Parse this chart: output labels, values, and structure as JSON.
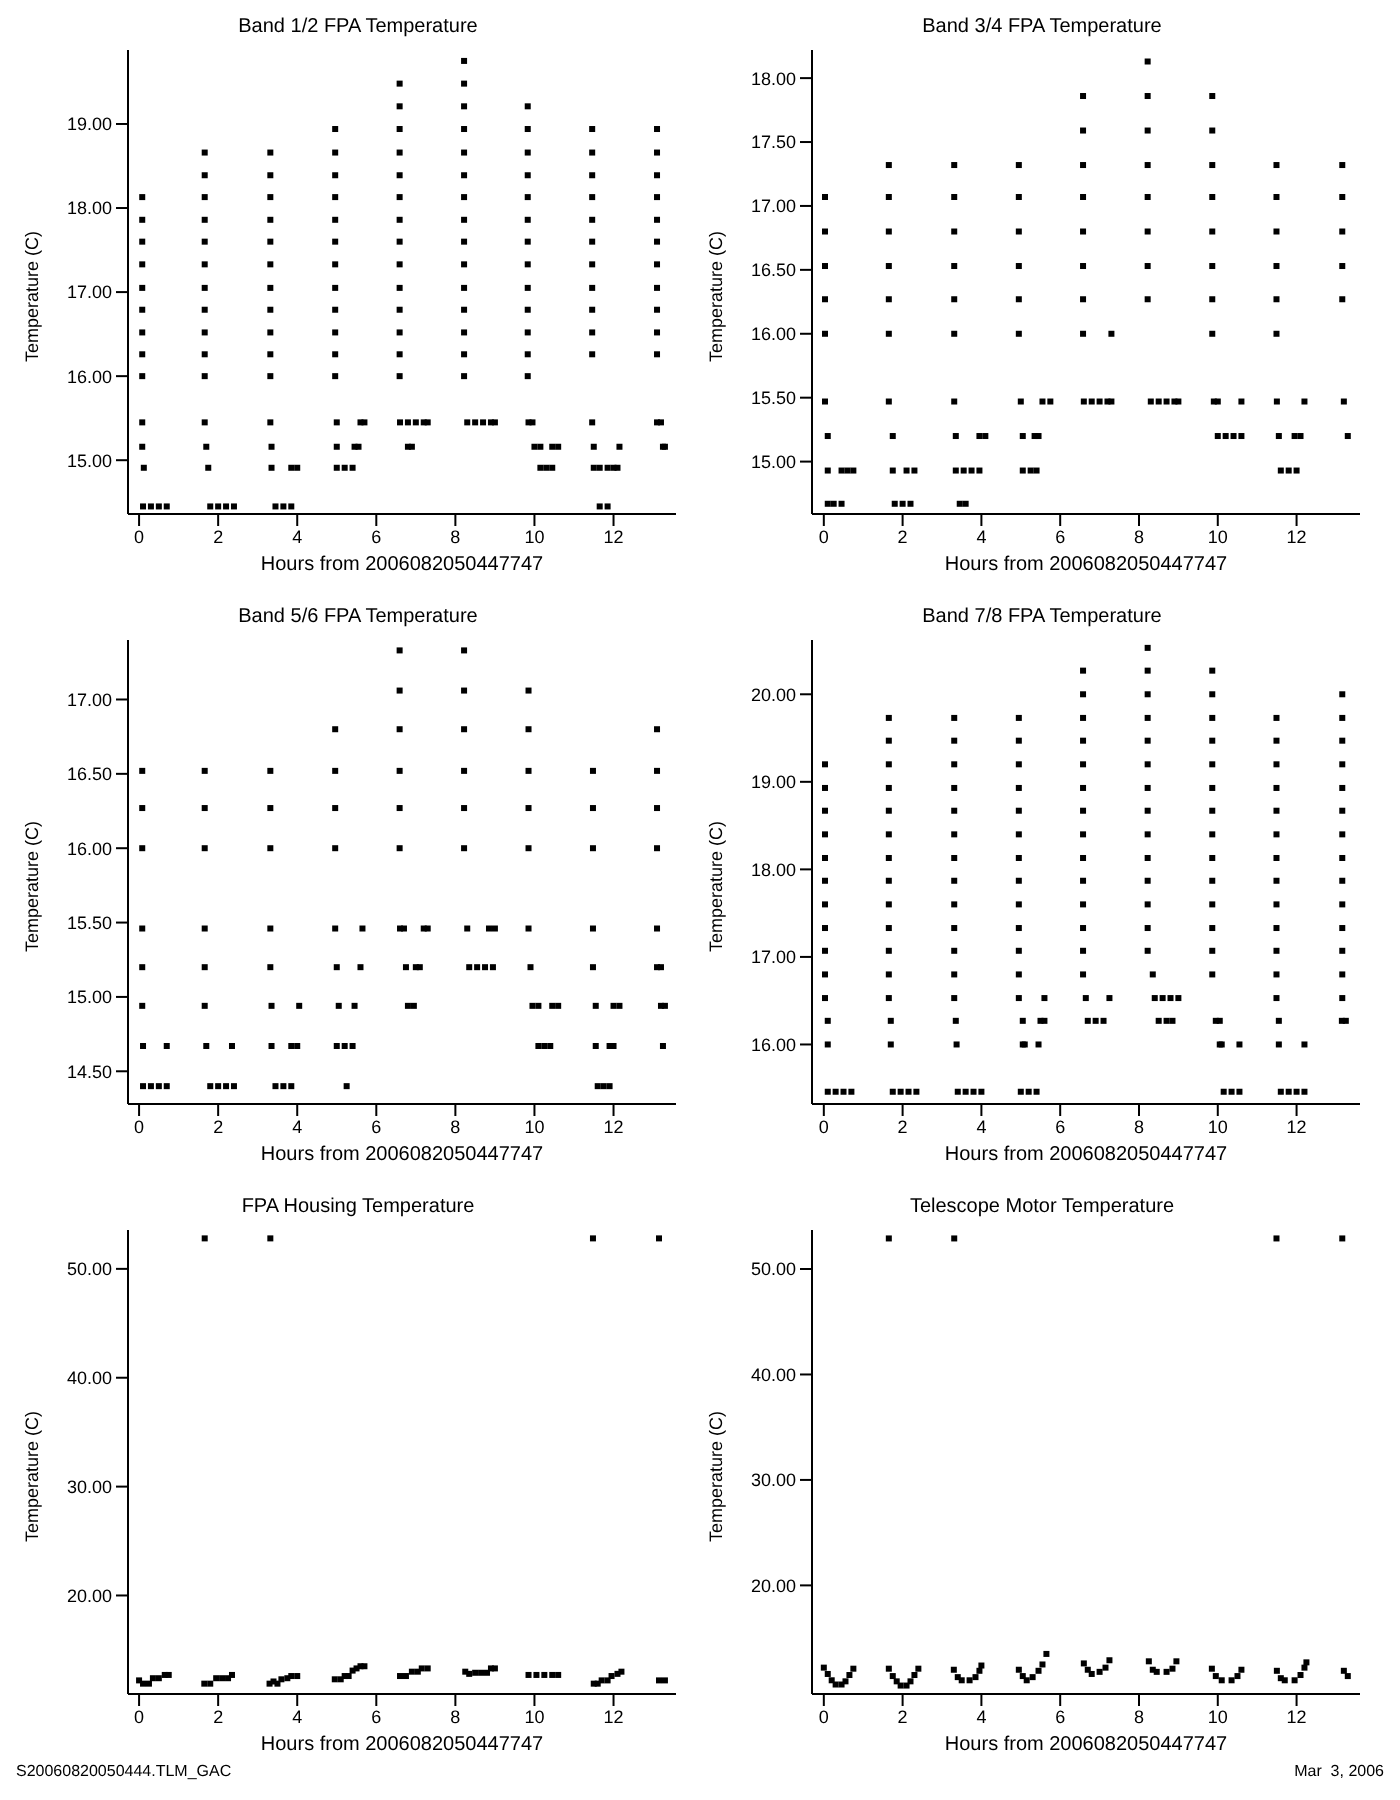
{
  "chart_data": [
    {
      "type": "scatter",
      "title": "Band 1/2 FPA Temperature",
      "xlabel": "Hours from 2006082050447747",
      "ylabel": "Temperature (C)",
      "color": "#000000",
      "marker": "square",
      "xlim": [
        -0.28,
        13.58
      ],
      "xticks": [
        0,
        2,
        4,
        6,
        8,
        10,
        12
      ],
      "ylim": [
        14.36,
        19.88
      ],
      "yticks": [
        {
          "value": 15,
          "label": "15.00"
        },
        {
          "value": 16,
          "label": "16.00"
        },
        {
          "value": 17,
          "label": "17.00"
        },
        {
          "value": 18,
          "label": "18.00"
        },
        {
          "value": 19,
          "label": "19.00"
        }
      ],
      "x": [
        0.08,
        0.08,
        0.08,
        0.08,
        0.08,
        0.08,
        0.08,
        0.08,
        0.08,
        0.08,
        0.08,
        0.12,
        0.1,
        0.3,
        0.5,
        0.7,
        1.66,
        1.66,
        1.66,
        1.66,
        1.66,
        1.66,
        1.66,
        1.66,
        1.66,
        1.66,
        1.66,
        1.66,
        1.7,
        1.75,
        1.8,
        2.0,
        2.2,
        2.4,
        3.32,
        3.32,
        3.32,
        3.32,
        3.32,
        3.32,
        3.32,
        3.32,
        3.32,
        3.32,
        3.32,
        3.32,
        3.35,
        3.35,
        3.45,
        3.65,
        3.85,
        3.85,
        4.0,
        4.96,
        4.96,
        4.96,
        4.96,
        4.96,
        4.96,
        4.96,
        4.96,
        4.96,
        4.96,
        4.96,
        4.96,
        5.0,
        5.0,
        5.0,
        5.2,
        5.4,
        5.45,
        5.55,
        5.6,
        5.7,
        6.59,
        6.59,
        6.59,
        6.59,
        6.59,
        6.59,
        6.59,
        6.59,
        6.59,
        6.59,
        6.59,
        6.59,
        6.59,
        6.59,
        6.6,
        6.8,
        7.0,
        7.2,
        7.3,
        6.8,
        6.9,
        8.22,
        8.22,
        8.22,
        8.22,
        8.22,
        8.22,
        8.22,
        8.22,
        8.22,
        8.22,
        8.22,
        8.22,
        8.22,
        8.22,
        8.22,
        8.3,
        8.5,
        8.7,
        8.9,
        9.0,
        9.83,
        9.83,
        9.83,
        9.83,
        9.83,
        9.83,
        9.83,
        9.83,
        9.83,
        9.83,
        9.83,
        9.83,
        9.83,
        9.85,
        9.95,
        10.0,
        10.15,
        10.15,
        10.3,
        10.45,
        10.45,
        10.6,
        11.46,
        11.46,
        11.46,
        11.46,
        11.46,
        11.46,
        11.46,
        11.46,
        11.46,
        11.46,
        11.46,
        11.46,
        11.5,
        11.5,
        11.65,
        11.65,
        11.85,
        11.85,
        12.0,
        12.1,
        12.15,
        13.1,
        13.1,
        13.1,
        13.1,
        13.1,
        13.1,
        13.1,
        13.1,
        13.1,
        13.1,
        13.1,
        13.1,
        13.2,
        13.25,
        13.3
      ],
      "values": [
        16.0,
        16.26,
        16.52,
        16.79,
        17.05,
        17.33,
        17.6,
        17.86,
        18.13,
        15.45,
        15.16,
        14.91,
        14.45,
        14.45,
        14.45,
        14.45,
        16.0,
        16.26,
        16.52,
        16.79,
        17.05,
        17.33,
        17.6,
        17.86,
        18.13,
        18.39,
        18.66,
        15.45,
        15.16,
        14.91,
        14.45,
        14.45,
        14.45,
        14.45,
        16.0,
        16.26,
        16.52,
        16.79,
        17.05,
        17.33,
        17.6,
        17.86,
        18.13,
        18.39,
        18.66,
        15.45,
        15.16,
        14.91,
        14.45,
        14.45,
        14.45,
        14.91,
        14.91,
        16.0,
        16.26,
        16.52,
        16.79,
        17.05,
        17.33,
        17.6,
        17.86,
        18.13,
        18.39,
        18.66,
        18.94,
        15.45,
        15.16,
        14.91,
        14.91,
        14.91,
        15.16,
        15.16,
        15.45,
        15.45,
        16.0,
        16.26,
        16.52,
        16.79,
        17.05,
        17.33,
        17.6,
        17.86,
        18.13,
        18.39,
        18.66,
        18.94,
        19.21,
        19.48,
        15.45,
        15.45,
        15.45,
        15.45,
        15.45,
        15.16,
        15.16,
        16.0,
        16.26,
        16.52,
        16.79,
        17.05,
        17.33,
        17.6,
        17.86,
        18.13,
        18.39,
        18.66,
        18.94,
        19.21,
        19.48,
        19.75,
        15.45,
        15.45,
        15.45,
        15.45,
        15.45,
        16.0,
        16.26,
        16.52,
        16.79,
        17.05,
        17.33,
        17.6,
        17.86,
        18.13,
        18.39,
        18.66,
        18.94,
        19.21,
        15.45,
        15.45,
        15.16,
        15.16,
        14.91,
        14.91,
        14.91,
        15.16,
        15.16,
        16.26,
        16.52,
        16.79,
        17.05,
        17.33,
        17.6,
        17.86,
        18.13,
        18.39,
        18.66,
        18.94,
        15.45,
        15.16,
        14.91,
        14.91,
        14.45,
        14.45,
        14.91,
        14.91,
        14.91,
        15.16,
        16.26,
        16.52,
        16.79,
        17.05,
        17.33,
        17.6,
        17.86,
        18.13,
        18.39,
        18.66,
        18.94,
        15.45,
        15.45,
        15.16,
        15.16
      ]
    },
    {
      "type": "scatter",
      "title": "Band 3/4 FPA Temperature",
      "xlabel": "Hours from 2006082050447747",
      "ylabel": "Temperature (C)",
      "color": "#000000",
      "marker": "square",
      "xlim": [
        -0.3,
        13.61
      ],
      "xticks": [
        0,
        2,
        4,
        6,
        8,
        10,
        12
      ],
      "ylim": [
        14.59,
        18.22
      ],
      "yticks": [
        {
          "value": 15,
          "label": "15.00"
        },
        {
          "value": 15.5,
          "label": "15.50"
        },
        {
          "value": 16,
          "label": "16.00"
        },
        {
          "value": 16.5,
          "label": "16.50"
        },
        {
          "value": 17,
          "label": "17.00"
        },
        {
          "value": 17.5,
          "label": "17.50"
        },
        {
          "value": 18,
          "label": "18.00"
        }
      ],
      "x": [
        0.03,
        0.03,
        0.03,
        0.03,
        0.03,
        0.03,
        0.1,
        0.1,
        0.45,
        0.6,
        0.75,
        0.1,
        0.25,
        0.45,
        1.65,
        1.65,
        1.65,
        1.65,
        1.65,
        1.65,
        1.65,
        1.75,
        1.75,
        2.1,
        2.3,
        1.8,
        2.0,
        2.2,
        3.31,
        3.31,
        3.31,
        3.31,
        3.31,
        3.31,
        3.31,
        3.35,
        3.35,
        3.55,
        3.75,
        3.95,
        3.95,
        4.1,
        3.45,
        3.6,
        4.95,
        4.95,
        4.95,
        4.95,
        4.95,
        4.95,
        5.0,
        5.05,
        5.05,
        5.25,
        5.4,
        5.35,
        5.45,
        5.55,
        5.75,
        6.58,
        6.58,
        6.58,
        6.58,
        6.58,
        6.58,
        6.58,
        6.58,
        6.6,
        6.8,
        7.0,
        7.2,
        7.3,
        7.3,
        8.22,
        8.22,
        8.22,
        8.22,
        8.22,
        8.22,
        8.22,
        8.22,
        8.3,
        8.5,
        8.7,
        8.9,
        9.0,
        9.86,
        9.86,
        9.86,
        9.86,
        9.86,
        9.86,
        9.86,
        9.86,
        9.9,
        10.0,
        10.0,
        10.2,
        10.4,
        10.6,
        10.6,
        11.49,
        11.49,
        11.49,
        11.49,
        11.49,
        11.49,
        11.5,
        11.55,
        11.6,
        11.8,
        12.0,
        11.95,
        12.1,
        12.2,
        13.16,
        13.16,
        13.16,
        13.16,
        13.16,
        13.2,
        13.3
      ],
      "values": [
        16.0,
        16.27,
        16.53,
        16.8,
        17.07,
        15.47,
        15.2,
        14.93,
        14.93,
        14.93,
        14.93,
        14.67,
        14.67,
        14.67,
        16.0,
        16.27,
        16.53,
        16.8,
        17.07,
        17.32,
        15.47,
        15.2,
        14.93,
        14.93,
        14.93,
        14.67,
        14.67,
        14.67,
        16.0,
        16.27,
        16.53,
        16.8,
        17.07,
        17.32,
        15.47,
        15.2,
        14.93,
        14.93,
        14.93,
        14.93,
        15.2,
        15.2,
        14.67,
        14.67,
        16.0,
        16.27,
        16.53,
        16.8,
        17.07,
        17.32,
        15.47,
        15.2,
        14.93,
        14.93,
        14.93,
        15.2,
        15.2,
        15.47,
        15.47,
        16.0,
        16.27,
        16.53,
        16.8,
        17.07,
        17.32,
        17.59,
        17.86,
        15.47,
        15.47,
        15.47,
        15.47,
        15.47,
        16.0,
        16.27,
        16.53,
        16.8,
        17.07,
        17.32,
        17.59,
        17.86,
        18.13,
        15.47,
        15.47,
        15.47,
        15.47,
        15.47,
        16.0,
        16.27,
        16.53,
        16.8,
        17.07,
        17.32,
        17.59,
        17.86,
        15.47,
        15.47,
        15.2,
        15.2,
        15.2,
        15.2,
        15.47,
        16.0,
        16.27,
        16.53,
        16.8,
        17.07,
        17.32,
        15.47,
        15.2,
        14.93,
        14.93,
        14.93,
        15.2,
        15.2,
        15.47,
        16.27,
        16.53,
        16.8,
        17.07,
        17.32,
        15.47,
        15.2
      ]
    },
    {
      "type": "scatter",
      "title": "Band 5/6 FPA Temperature",
      "xlabel": "Hours from 2006082050447747",
      "ylabel": "Temperature (C)",
      "color": "#000000",
      "marker": "square",
      "xlim": [
        -0.28,
        13.58
      ],
      "xticks": [
        0,
        2,
        4,
        6,
        8,
        10,
        12
      ],
      "ylim": [
        14.28,
        17.4
      ],
      "yticks": [
        {
          "value": 14.5,
          "label": "14.50"
        },
        {
          "value": 15,
          "label": "15.00"
        },
        {
          "value": 15.5,
          "label": "15.50"
        },
        {
          "value": 16,
          "label": "16.00"
        },
        {
          "value": 16.5,
          "label": "16.50"
        },
        {
          "value": 17,
          "label": "17.00"
        }
      ],
      "x": [
        0.08,
        0.08,
        0.08,
        0.08,
        0.08,
        0.08,
        0.1,
        0.7,
        0.1,
        0.3,
        0.5,
        0.7,
        1.66,
        1.66,
        1.66,
        1.66,
        1.66,
        1.66,
        1.7,
        2.35,
        1.8,
        2.0,
        2.2,
        2.4,
        3.32,
        3.32,
        3.32,
        3.32,
        3.32,
        3.35,
        3.35,
        3.85,
        4.0,
        4.05,
        3.45,
        3.65,
        3.85,
        4.96,
        4.96,
        4.96,
        4.96,
        4.96,
        5.0,
        5.05,
        5.0,
        5.2,
        5.4,
        5.25,
        5.45,
        5.6,
        5.65,
        6.59,
        6.59,
        6.59,
        6.59,
        6.59,
        6.59,
        6.6,
        6.7,
        6.75,
        6.8,
        6.95,
        7.0,
        7.1,
        7.2,
        7.3,
        8.22,
        8.22,
        8.22,
        8.22,
        8.22,
        8.22,
        8.3,
        8.35,
        8.55,
        8.75,
        8.95,
        8.85,
        9.0,
        9.85,
        9.85,
        9.85,
        9.85,
        9.85,
        9.85,
        9.9,
        9.95,
        10.1,
        10.1,
        10.25,
        10.4,
        10.45,
        10.6,
        11.48,
        11.48,
        11.48,
        11.48,
        11.48,
        11.55,
        11.55,
        11.6,
        11.75,
        11.9,
        11.9,
        12.0,
        12.0,
        12.15,
        13.1,
        13.1,
        13.1,
        13.1,
        13.1,
        13.1,
        13.2,
        13.2,
        13.3,
        13.25
      ],
      "values": [
        16.0,
        16.27,
        16.52,
        15.46,
        15.2,
        14.94,
        14.67,
        14.67,
        14.4,
        14.4,
        14.4,
        14.4,
        16.0,
        16.27,
        16.52,
        15.46,
        15.2,
        14.94,
        14.67,
        14.67,
        14.4,
        14.4,
        14.4,
        14.4,
        16.0,
        16.27,
        16.52,
        15.46,
        15.2,
        14.94,
        14.67,
        14.67,
        14.67,
        14.94,
        14.4,
        14.4,
        14.4,
        16.0,
        16.27,
        16.52,
        16.8,
        15.46,
        15.2,
        14.94,
        14.67,
        14.67,
        14.67,
        14.4,
        14.94,
        15.2,
        15.46,
        16.0,
        16.27,
        16.52,
        16.8,
        17.06,
        17.33,
        15.46,
        15.46,
        15.2,
        14.94,
        14.94,
        15.2,
        15.2,
        15.46,
        15.46,
        16.0,
        16.27,
        16.52,
        16.8,
        17.06,
        17.33,
        15.46,
        15.2,
        15.2,
        15.2,
        15.2,
        15.46,
        15.46,
        16.0,
        16.27,
        16.52,
        16.8,
        17.06,
        15.46,
        15.2,
        14.94,
        14.94,
        14.67,
        14.67,
        14.67,
        14.94,
        14.94,
        16.0,
        16.27,
        16.52,
        15.46,
        15.2,
        14.94,
        14.67,
        14.4,
        14.4,
        14.4,
        14.67,
        14.67,
        14.94,
        14.94,
        16.0,
        16.27,
        16.52,
        16.8,
        15.46,
        15.2,
        15.2,
        14.94,
        14.94,
        14.67
      ]
    },
    {
      "type": "scatter",
      "title": "Band 7/8 FPA Temperature",
      "xlabel": "Hours from 2006082050447747",
      "ylabel": "Temperature (C)",
      "color": "#000000",
      "marker": "square",
      "xlim": [
        -0.3,
        13.61
      ],
      "xticks": [
        0,
        2,
        4,
        6,
        8,
        10,
        12
      ],
      "ylim": [
        15.32,
        20.62
      ],
      "yticks": [
        {
          "value": 16,
          "label": "16.00"
        },
        {
          "value": 17,
          "label": "17.00"
        },
        {
          "value": 18,
          "label": "18.00"
        },
        {
          "value": 19,
          "label": "19.00"
        },
        {
          "value": 20,
          "label": "20.00"
        }
      ],
      "x": [
        0.03,
        0.03,
        0.03,
        0.03,
        0.03,
        0.03,
        0.03,
        0.03,
        0.03,
        0.03,
        0.03,
        0.1,
        0.1,
        0.1,
        0.3,
        0.5,
        0.7,
        1.65,
        1.65,
        1.65,
        1.65,
        1.65,
        1.65,
        1.65,
        1.65,
        1.65,
        1.65,
        1.65,
        1.65,
        1.65,
        1.7,
        1.7,
        1.75,
        1.95,
        2.15,
        2.35,
        3.31,
        3.31,
        3.31,
        3.31,
        3.31,
        3.31,
        3.31,
        3.31,
        3.31,
        3.31,
        3.31,
        3.31,
        3.31,
        3.35,
        3.37,
        3.4,
        3.6,
        3.8,
        4.0,
        4.95,
        4.95,
        4.95,
        4.95,
        4.95,
        4.95,
        4.95,
        4.95,
        4.95,
        4.95,
        4.95,
        4.95,
        4.95,
        5.05,
        5.05,
        5.1,
        5.45,
        5.5,
        5.6,
        5.6,
        5.0,
        5.2,
        5.4,
        6.58,
        6.58,
        6.58,
        6.58,
        6.58,
        6.58,
        6.58,
        6.58,
        6.58,
        6.58,
        6.58,
        6.58,
        6.58,
        6.58,
        6.65,
        6.7,
        6.9,
        7.1,
        7.25,
        8.22,
        8.22,
        8.22,
        8.22,
        8.22,
        8.22,
        8.22,
        8.22,
        8.22,
        8.22,
        8.22,
        8.22,
        8.22,
        8.22,
        8.35,
        8.4,
        8.6,
        8.8,
        9.0,
        8.5,
        8.7,
        8.85,
        9.86,
        9.86,
        9.86,
        9.86,
        9.86,
        9.86,
        9.86,
        9.86,
        9.86,
        9.86,
        9.86,
        9.86,
        9.86,
        9.86,
        9.95,
        10.05,
        10.05,
        10.1,
        10.55,
        10.15,
        10.35,
        10.55,
        11.49,
        11.49,
        11.49,
        11.49,
        11.49,
        11.49,
        11.49,
        11.49,
        11.49,
        11.49,
        11.49,
        11.49,
        11.49,
        11.55,
        11.55,
        12.2,
        11.6,
        11.8,
        12.0,
        12.2,
        13.16,
        13.16,
        13.16,
        13.16,
        13.16,
        13.16,
        13.16,
        13.16,
        13.16,
        13.16,
        13.16,
        13.16,
        13.16,
        13.16,
        13.15,
        13.25
      ],
      "values": [
        16.53,
        16.8,
        17.07,
        17.33,
        17.6,
        17.87,
        18.13,
        18.4,
        18.67,
        18.93,
        19.2,
        16.27,
        16.0,
        15.46,
        15.46,
        15.46,
        15.46,
        16.53,
        16.8,
        17.07,
        17.33,
        17.6,
        17.87,
        18.13,
        18.4,
        18.67,
        18.93,
        19.2,
        19.47,
        19.73,
        16.27,
        16.0,
        15.46,
        15.46,
        15.46,
        15.46,
        16.53,
        16.8,
        17.07,
        17.33,
        17.6,
        17.87,
        18.13,
        18.4,
        18.67,
        18.93,
        19.2,
        19.47,
        19.73,
        16.27,
        16.0,
        15.46,
        15.46,
        15.46,
        15.46,
        16.53,
        16.8,
        17.07,
        17.33,
        17.6,
        17.87,
        18.13,
        18.4,
        18.67,
        18.93,
        19.2,
        19.47,
        19.73,
        16.27,
        16.0,
        16.0,
        16.0,
        16.27,
        16.27,
        16.53,
        15.46,
        15.46,
        15.46,
        16.8,
        17.07,
        17.33,
        17.6,
        17.87,
        18.13,
        18.4,
        18.67,
        18.93,
        19.2,
        19.47,
        19.73,
        20.0,
        20.27,
        16.53,
        16.27,
        16.27,
        16.27,
        16.53,
        17.07,
        17.33,
        17.6,
        17.87,
        18.13,
        18.4,
        18.67,
        18.93,
        19.2,
        19.47,
        19.73,
        20.0,
        20.27,
        20.53,
        16.8,
        16.53,
        16.53,
        16.53,
        16.53,
        16.27,
        16.27,
        16.27,
        16.8,
        17.07,
        17.33,
        17.6,
        17.87,
        18.13,
        18.4,
        18.67,
        18.93,
        19.2,
        19.47,
        19.73,
        20.0,
        20.27,
        16.27,
        16.27,
        16.0,
        16.0,
        16.0,
        15.46,
        15.46,
        15.46,
        16.53,
        16.8,
        17.07,
        17.33,
        17.6,
        17.87,
        18.13,
        18.4,
        18.67,
        18.93,
        19.2,
        19.47,
        19.73,
        16.27,
        16.0,
        16.0,
        15.46,
        15.46,
        15.46,
        15.46,
        16.53,
        16.8,
        17.07,
        17.33,
        17.6,
        17.87,
        18.13,
        18.4,
        18.67,
        18.93,
        19.2,
        19.47,
        19.73,
        20.0,
        16.27,
        16.27
      ]
    },
    {
      "type": "scatter",
      "title": "FPA Housing Temperature",
      "xlabel": "Hours from 2006082050447747",
      "ylabel": "Temperature (C)",
      "color": "#000000",
      "marker": "square",
      "annotations": [
        "S20060820050444.TLM_GAC"
      ],
      "xlim": [
        -0.28,
        13.58
      ],
      "xticks": [
        0,
        2,
        4,
        6,
        8,
        10,
        12
      ],
      "ylim": [
        10.95,
        53.57
      ],
      "yticks": [
        {
          "value": 20,
          "label": "20.00"
        },
        {
          "value": 30,
          "label": "30.00"
        },
        {
          "value": 40,
          "label": "40.00"
        },
        {
          "value": 50,
          "label": "50.00"
        }
      ],
      "x": [
        1.66,
        3.32,
        11.48,
        13.15,
        0.0,
        0.1,
        0.25,
        0.35,
        0.5,
        0.65,
        0.75,
        1.65,
        1.8,
        1.95,
        2.1,
        2.25,
        2.35,
        3.3,
        3.4,
        3.5,
        3.6,
        3.75,
        3.85,
        4.0,
        4.95,
        5.1,
        5.2,
        5.3,
        5.4,
        5.5,
        5.6,
        5.7,
        6.6,
        6.75,
        6.9,
        7.05,
        7.15,
        7.3,
        8.25,
        8.35,
        8.5,
        8.65,
        8.8,
        8.9,
        9.0,
        9.85,
        10.05,
        10.25,
        10.45,
        10.6,
        11.5,
        11.6,
        11.7,
        11.85,
        11.95,
        12.1,
        12.2,
        13.15,
        13.3
      ],
      "values": [
        52.8,
        52.8,
        52.8,
        52.8,
        12.2,
        11.9,
        11.9,
        12.4,
        12.4,
        12.7,
        12.7,
        11.9,
        11.9,
        12.4,
        12.4,
        12.4,
        12.7,
        11.9,
        12.1,
        11.9,
        12.3,
        12.4,
        12.6,
        12.6,
        12.3,
        12.3,
        12.6,
        12.6,
        13.1,
        13.3,
        13.5,
        13.5,
        12.6,
        12.6,
        13.0,
        13.0,
        13.3,
        13.3,
        13.0,
        12.8,
        12.9,
        12.9,
        12.9,
        13.3,
        13.3,
        12.7,
        12.7,
        12.7,
        12.7,
        12.7,
        11.9,
        11.9,
        12.2,
        12.2,
        12.6,
        12.8,
        13.0,
        12.2,
        12.2
      ]
    },
    {
      "type": "scatter",
      "title": "Telescope Motor Temperature",
      "xlabel": "Hours from 2006082050447747",
      "ylabel": "Temperature (C)",
      "color": "#000000",
      "marker": "square",
      "annotations": [
        "Mar  3, 2006"
      ],
      "xlim": [
        -0.3,
        13.61
      ],
      "xticks": [
        0,
        2,
        4,
        6,
        8,
        10,
        12
      ],
      "ylim": [
        9.7,
        53.7
      ],
      "yticks": [
        {
          "value": 20,
          "label": "20.00"
        },
        {
          "value": 30,
          "label": "30.00"
        },
        {
          "value": 40,
          "label": "40.00"
        },
        {
          "value": 50,
          "label": "50.00"
        }
      ],
      "x": [
        1.65,
        3.31,
        11.49,
        13.16,
        0.0,
        0.1,
        0.2,
        0.3,
        0.45,
        0.55,
        0.65,
        0.75,
        1.65,
        1.75,
        1.85,
        1.95,
        2.1,
        2.2,
        2.3,
        2.4,
        3.3,
        3.4,
        3.5,
        3.7,
        3.85,
        3.95,
        4.0,
        4.95,
        5.05,
        5.15,
        5.3,
        5.45,
        5.55,
        5.65,
        6.6,
        6.7,
        6.8,
        7.0,
        7.15,
        7.25,
        8.25,
        8.35,
        8.45,
        8.7,
        8.85,
        8.95,
        9.85,
        9.95,
        10.1,
        10.35,
        10.5,
        10.6,
        11.5,
        11.6,
        11.7,
        11.95,
        12.1,
        12.2,
        12.25,
        13.2,
        13.3
      ],
      "values": [
        52.9,
        52.9,
        52.9,
        52.9,
        12.2,
        11.6,
        11.0,
        10.6,
        10.6,
        10.9,
        11.5,
        12.1,
        12.1,
        11.4,
        10.9,
        10.5,
        10.5,
        10.9,
        11.5,
        12.1,
        12.0,
        11.3,
        11.0,
        11.0,
        11.3,
        11.9,
        12.4,
        12.0,
        11.4,
        11.0,
        11.3,
        11.9,
        12.5,
        13.5,
        12.6,
        12.0,
        11.6,
        11.8,
        12.2,
        12.9,
        12.8,
        12.0,
        11.8,
        11.8,
        12.1,
        12.8,
        12.1,
        11.4,
        11.0,
        11.0,
        11.4,
        12.0,
        11.9,
        11.2,
        11.0,
        11.0,
        11.5,
        12.2,
        12.7,
        11.9,
        11.4
      ]
    }
  ]
}
